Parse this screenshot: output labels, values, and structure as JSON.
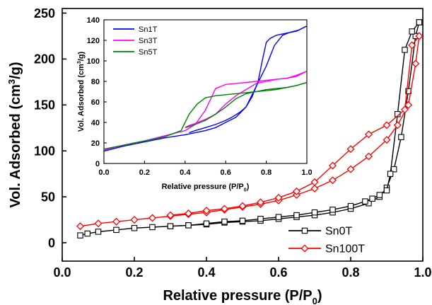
{
  "chart_data": [
    {
      "type": "line",
      "title": "",
      "xlabel": "Relative pressure (P/P",
      "xlabel_sub": "0",
      "xlabel_tail": ")",
      "ylabel": "Vol. Adsorbed (cm",
      "ylabel_sup": "3",
      "ylabel_tail": "/g)",
      "xlim": [
        0.0,
        1.0
      ],
      "ylim": [
        -20,
        255
      ],
      "xticks": [
        "0.0",
        "0.2",
        "0.4",
        "0.6",
        "0.8",
        "1.0"
      ],
      "yticks": [
        "0",
        "50",
        "100",
        "150",
        "200",
        "250"
      ],
      "legend_position": "bottom-right",
      "series": [
        {
          "name": "Sn0T",
          "color": "#000000",
          "marker": "square",
          "adsorption": {
            "x": [
              0.05,
              0.07,
              0.1,
              0.15,
              0.2,
              0.25,
              0.3,
              0.35,
              0.4,
              0.45,
              0.5,
              0.55,
              0.6,
              0.65,
              0.7,
              0.75,
              0.8,
              0.85,
              0.88,
              0.9,
              0.92,
              0.94,
              0.96,
              0.98,
              0.99
            ],
            "y": [
              8,
              10,
              12,
              14,
              16,
              17,
              18,
              19,
              20,
              22,
              23,
              24,
              26,
              28,
              30,
              33,
              37,
              43,
              50,
              60,
              80,
              115,
              165,
              225,
              240
            ]
          },
          "desorption": {
            "x": [
              0.99,
              0.97,
              0.95,
              0.93,
              0.91,
              0.9,
              0.88,
              0.86,
              0.84,
              0.8,
              0.75,
              0.7,
              0.65,
              0.6,
              0.55,
              0.5,
              0.45,
              0.4,
              0.35,
              0.3
            ],
            "y": [
              240,
              230,
              210,
              140,
              75,
              57,
              52,
              48,
              45,
              40,
              36,
              33,
              30,
              28,
              26,
              24,
              23,
              21,
              19,
              18
            ]
          }
        },
        {
          "name": "Sn100T",
          "color": "#ff0000",
          "marker": "diamond",
          "adsorption": {
            "x": [
              0.05,
              0.1,
              0.15,
              0.2,
              0.25,
              0.3,
              0.35,
              0.4,
              0.45,
              0.5,
              0.55,
              0.6,
              0.65,
              0.7,
              0.75,
              0.8,
              0.85,
              0.9,
              0.93,
              0.96,
              0.98,
              0.99
            ],
            "y": [
              18,
              21,
              23,
              25,
              27,
              29,
              31,
              33,
              36,
              39,
              42,
              46,
              52,
              59,
              68,
              80,
              94,
              112,
              128,
              150,
              195,
              225
            ]
          },
          "desorption": {
            "x": [
              0.99,
              0.97,
              0.95,
              0.9,
              0.85,
              0.8,
              0.75,
              0.7,
              0.65,
              0.6,
              0.55,
              0.5,
              0.45,
              0.4,
              0.35,
              0.3
            ],
            "y": [
              225,
              215,
              145,
              128,
              118,
              102,
              84,
              66,
              56,
              49,
              44,
              40,
              37,
              35,
              32,
              30
            ]
          }
        }
      ]
    },
    {
      "type": "line",
      "title": "",
      "xlabel": "Relative pressure (P/P",
      "xlabel_sub": "0",
      "xlabel_tail": ")",
      "ylabel": "Vol. Adsorbed (cm",
      "ylabel_sup": "3",
      "ylabel_tail": "/g)",
      "xlim": [
        0.0,
        1.0
      ],
      "ylim": [
        0,
        140
      ],
      "xticks": [
        "0.0",
        "0.2",
        "0.4",
        "0.6",
        "0.8",
        "1.0"
      ],
      "yticks": [
        "0",
        "20",
        "40",
        "60",
        "80",
        "100",
        "120",
        "140"
      ],
      "legend_position": "top-left",
      "series": [
        {
          "name": "Sn1T",
          "color": "#0000ff",
          "adsorption": {
            "x": [
              0.0,
              0.1,
              0.2,
              0.3,
              0.4,
              0.5,
              0.55,
              0.6,
              0.65,
              0.7,
              0.75,
              0.8,
              0.84,
              0.88,
              0.92,
              0.96,
              1.0
            ],
            "y": [
              12,
              17,
              21,
              25,
              28,
              32,
              35,
              40,
              45,
              55,
              75,
              95,
              115,
              125,
              128,
              130,
              134
            ]
          },
          "desorption": {
            "x": [
              1.0,
              0.95,
              0.9,
              0.85,
              0.82,
              0.8,
              0.78,
              0.76,
              0.73,
              0.7,
              0.67,
              0.63,
              0.6,
              0.55,
              0.5,
              0.45,
              0.42
            ],
            "y": [
              134,
              129,
              127,
              125,
              122,
              118,
              100,
              80,
              65,
              55,
              50,
              45,
              42,
              38,
              35,
              32,
              30
            ]
          }
        },
        {
          "name": "Sn3T",
          "color": "#ff00ff",
          "adsorption": {
            "x": [
              0.0,
              0.1,
              0.2,
              0.3,
              0.4,
              0.45,
              0.5,
              0.55,
              0.6,
              0.65,
              0.7,
              0.75,
              0.8,
              0.85,
              0.9,
              0.95,
              1.0
            ],
            "y": [
              13,
              18,
              22,
              27,
              32,
              38,
              52,
              73,
              77,
              78,
              79,
              80,
              81,
              82,
              83,
              85,
              90
            ]
          },
          "desorption": {
            "x": [
              1.0,
              0.95,
              0.9,
              0.85,
              0.8,
              0.75,
              0.7,
              0.65,
              0.6,
              0.55,
              0.5,
              0.45,
              0.42,
              0.4
            ],
            "y": [
              90,
              86,
              83,
              82,
              80,
              78,
              72,
              66,
              58,
              48,
              43,
              39,
              37,
              35
            ]
          }
        },
        {
          "name": "Sn5T",
          "color": "#008000",
          "adsorption": {
            "x": [
              0.0,
              0.1,
              0.2,
              0.3,
              0.38,
              0.42,
              0.46,
              0.5,
              0.55,
              0.6,
              0.65,
              0.7,
              0.75,
              0.8,
              0.85,
              0.9,
              0.95,
              1.0
            ],
            "y": [
              14,
              18,
              22,
              26,
              32,
              48,
              58,
              64,
              66,
              67,
              68,
              69,
              70,
              71,
              72,
              74,
              76,
              79
            ]
          },
          "desorption": {
            "x": [
              1.0,
              0.95,
              0.9,
              0.85,
              0.8,
              0.75,
              0.7,
              0.65,
              0.6,
              0.55,
              0.5,
              0.45,
              0.42,
              0.4
            ],
            "y": [
              79,
              76,
              74,
              73,
              72,
              70,
              68,
              63,
              55,
              48,
              42,
              38,
              36,
              35
            ]
          }
        }
      ]
    }
  ]
}
